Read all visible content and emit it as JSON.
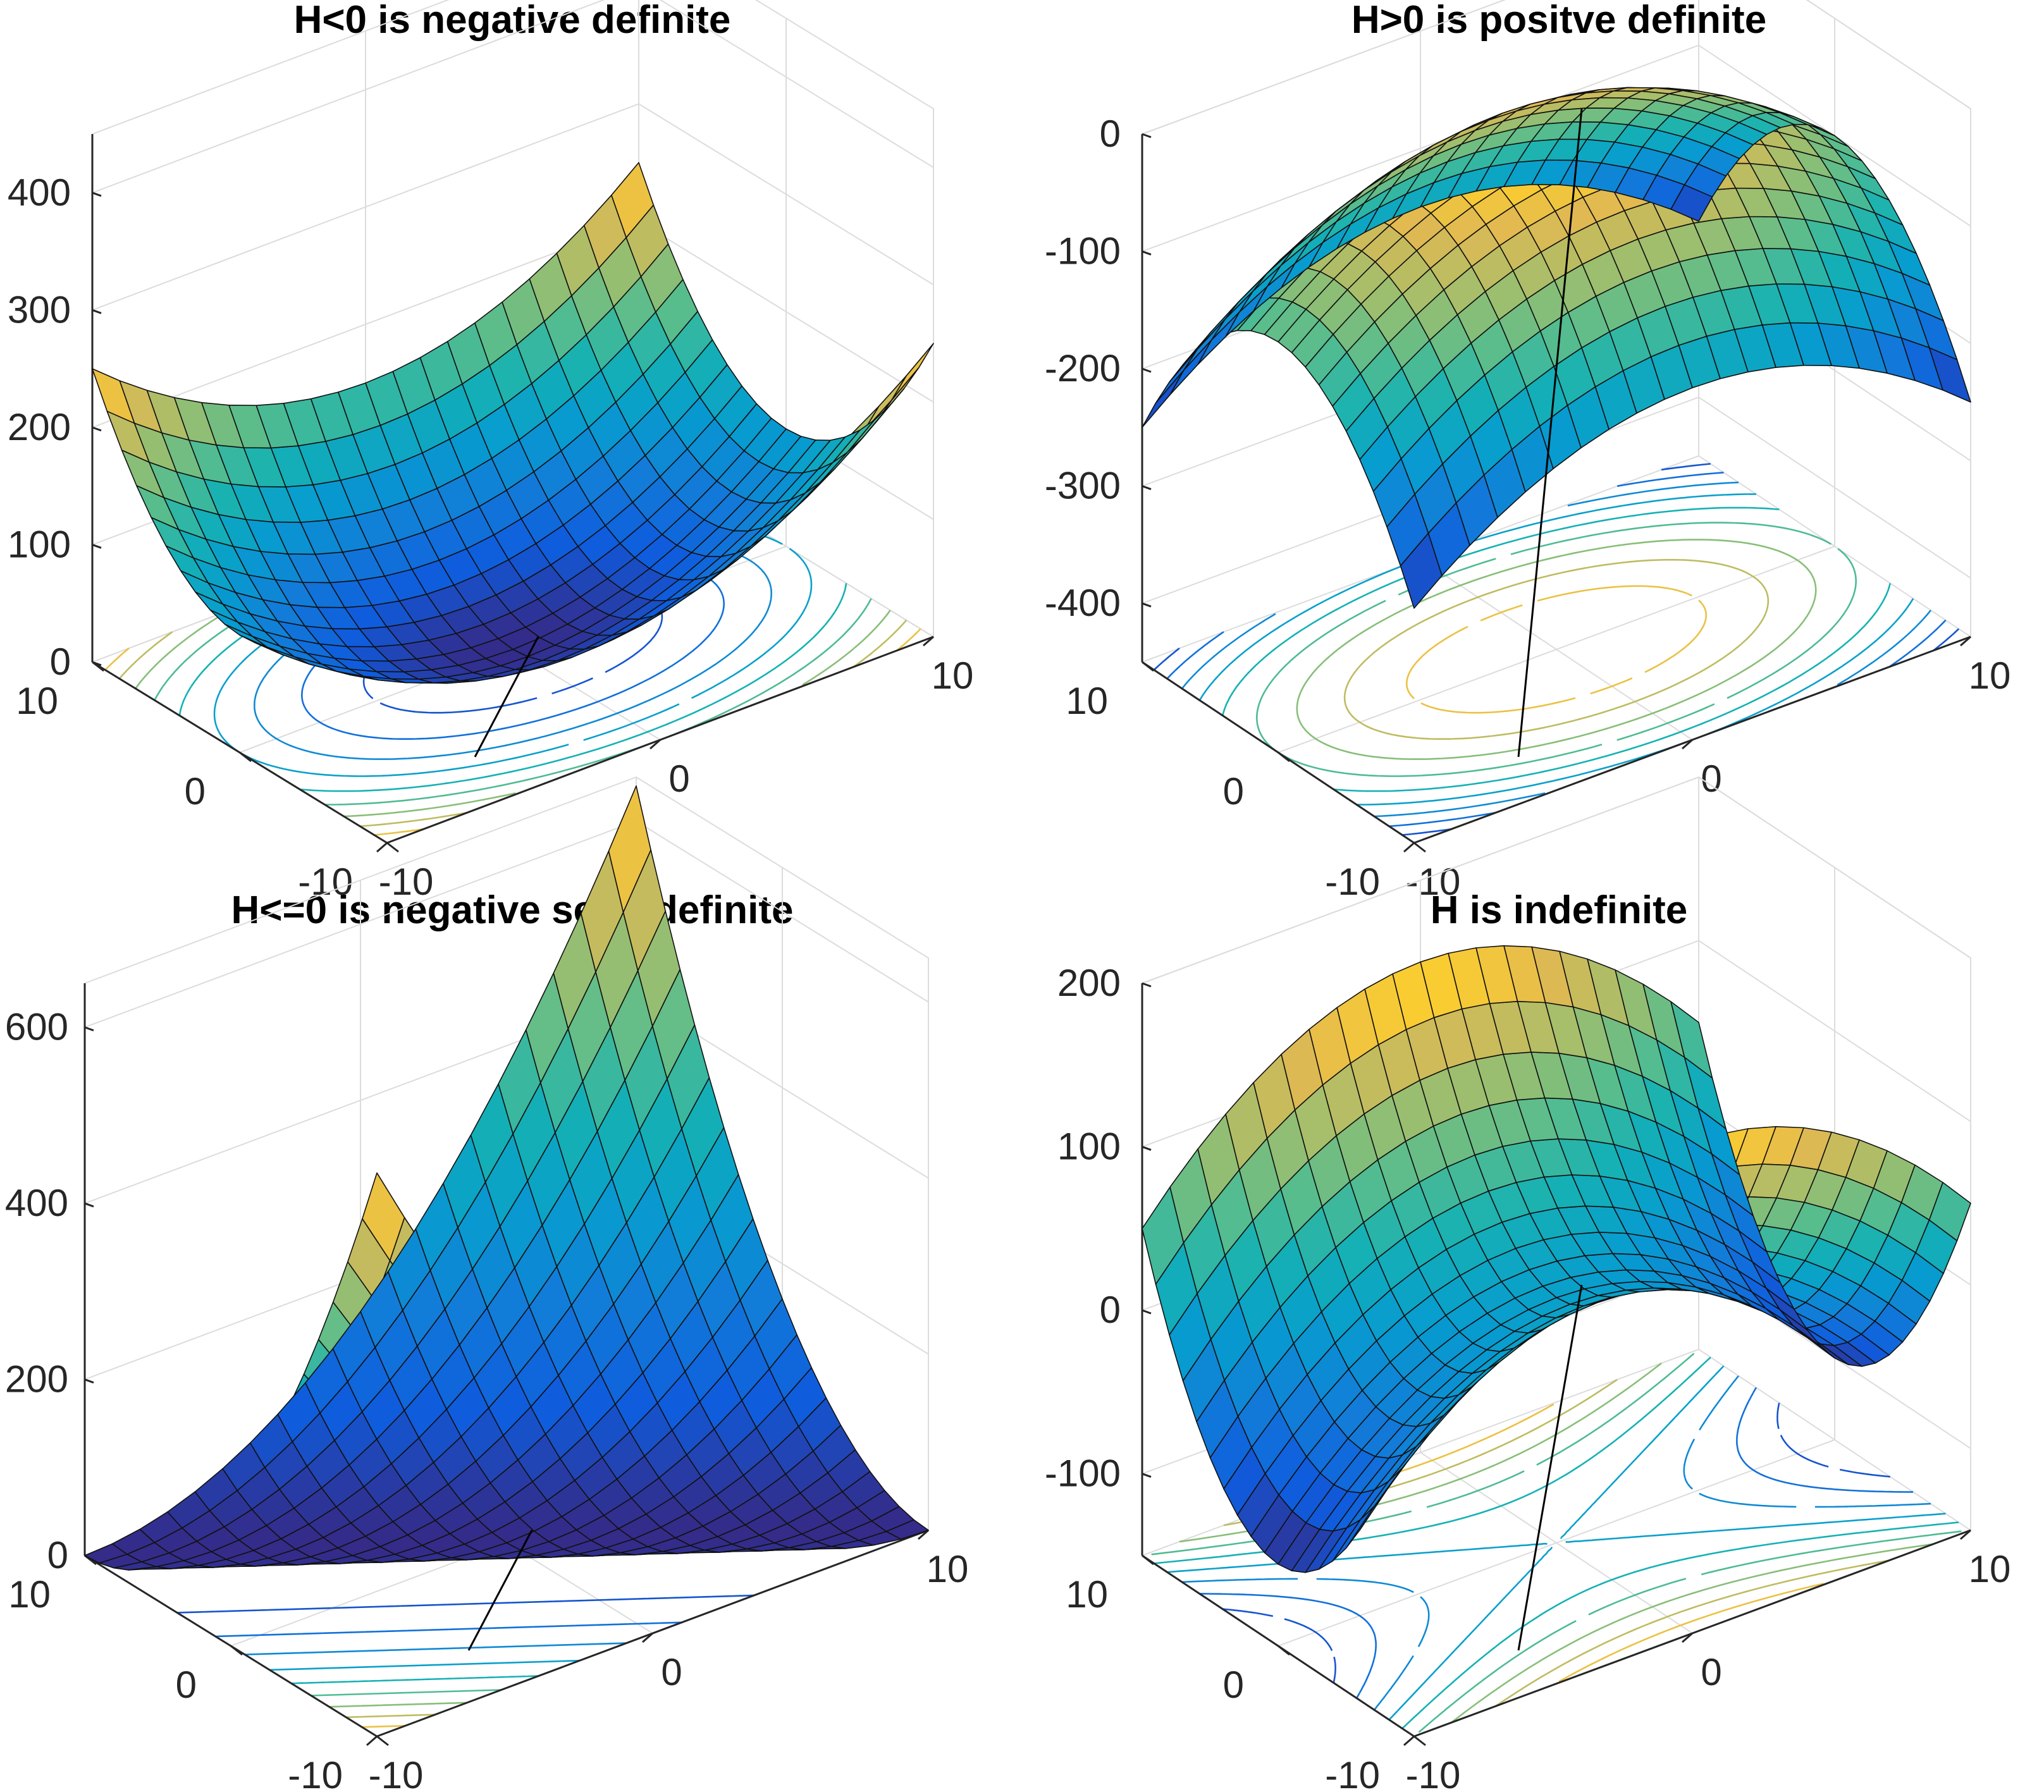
{
  "figure": {
    "panels": [
      {
        "title": "H<0 is negative definite",
        "z_ticks": [
          "0",
          "100",
          "200",
          "300",
          "400"
        ],
        "x_ticks": [
          "-10",
          "0",
          "10"
        ],
        "y_ticks": [
          "-10",
          "0",
          "10"
        ]
      },
      {
        "title": "H>0 is positve definite",
        "z_ticks": [
          "-400",
          "-300",
          "-200",
          "-100",
          "0"
        ],
        "x_ticks": [
          "-10",
          "0",
          "10"
        ],
        "y_ticks": [
          "-10",
          "0",
          "10"
        ]
      },
      {
        "title": "H<=0 is negative semi-definite",
        "z_ticks": [
          "0",
          "200",
          "400",
          "600"
        ],
        "x_ticks": [
          "-10",
          "0",
          "10"
        ],
        "y_ticks": [
          "-10",
          "0",
          "10"
        ]
      },
      {
        "title": "H is indefinite",
        "z_ticks": [
          "-100",
          "0",
          "100",
          "200"
        ],
        "x_ticks": [
          "-10",
          "0",
          "10"
        ],
        "y_ticks": [
          "-10",
          "0",
          "10"
        ]
      }
    ]
  },
  "chart_data": [
    {
      "type": "surface",
      "title": "H<0 is negative definite",
      "function": "z = x^2 + 1.5*y^2 (approximate, read from figure)",
      "x_range": [
        -10,
        10
      ],
      "y_range": [
        -10,
        10
      ],
      "zlim": [
        0,
        450
      ],
      "z_ticks": [
        0,
        100,
        200,
        300,
        400
      ],
      "x_ticks": [
        -10,
        0,
        10
      ],
      "y_ticks": [
        -10,
        0,
        10
      ],
      "mesh_size": 21,
      "contours": "projected on base plane",
      "colormap": "parula",
      "grid": true
    },
    {
      "type": "surface",
      "title": "H>0 is positve definite",
      "function": "z = -(x^2 + 1.5*y^2) (approximate, read from figure)",
      "x_range": [
        -10,
        10
      ],
      "y_range": [
        -10,
        10
      ],
      "zlim": [
        -450,
        0
      ],
      "z_ticks": [
        -400,
        -300,
        -200,
        -100,
        0
      ],
      "x_ticks": [
        -10,
        0,
        10
      ],
      "y_ticks": [
        -10,
        0,
        10
      ],
      "mesh_size": 21,
      "contours": "projected on base plane",
      "colormap": "parula",
      "grid": true
    },
    {
      "type": "surface",
      "title": "H<=0 is negative semi-definite",
      "function": "z = 1.6*(x + y)^2 (approximate, read from figure)",
      "x_range": [
        -10,
        10
      ],
      "y_range": [
        -10,
        10
      ],
      "zlim": [
        0,
        650
      ],
      "z_ticks": [
        0,
        200,
        400,
        600
      ],
      "x_ticks": [
        -10,
        0,
        10
      ],
      "y_ticks": [
        -10,
        0,
        10
      ],
      "mesh_size": 21,
      "contours": "projected on base plane",
      "colormap": "parula",
      "grid": true
    },
    {
      "type": "surface",
      "title": "H is indefinite",
      "function": "z = 1.5*y^2 - x^2 (approximate, read from figure)",
      "x_range": [
        -10,
        10
      ],
      "y_range": [
        -10,
        10
      ],
      "zlim": [
        -150,
        200
      ],
      "z_ticks": [
        -100,
        0,
        100,
        200
      ],
      "x_ticks": [
        -10,
        0,
        10
      ],
      "y_ticks": [
        -10,
        0,
        10
      ],
      "mesh_size": 21,
      "contours": "projected on base plane",
      "colormap": "parula",
      "grid": true
    }
  ]
}
